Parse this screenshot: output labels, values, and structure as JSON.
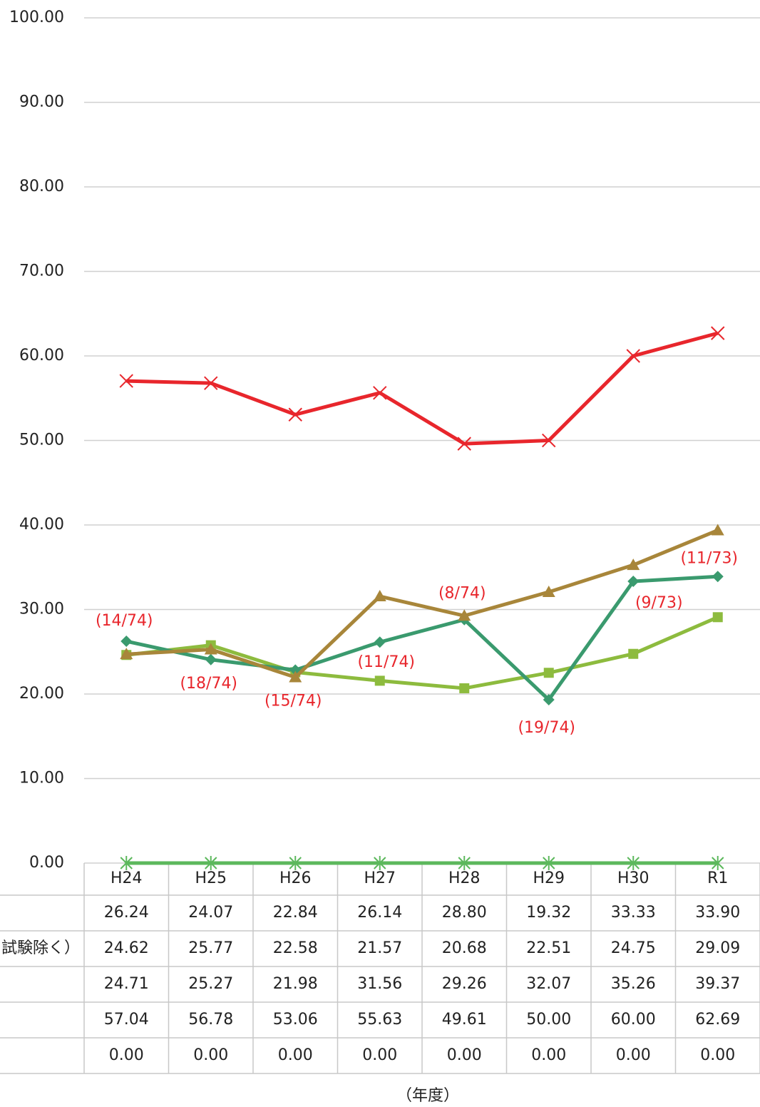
{
  "chart_data": {
    "type": "line",
    "x_label": "（年度）",
    "categories": [
      "H24",
      "H25",
      "H26",
      "H27",
      "H28",
      "H29",
      "H30",
      "R1"
    ],
    "series": [
      {
        "color": "#3a9a6e",
        "marker": "diamond",
        "values": [
          26.24,
          24.07,
          22.84,
          26.14,
          28.8,
          19.32,
          33.33,
          33.9
        ],
        "value_labels": [
          "26.24",
          "24.07",
          "22.84",
          "26.14",
          "28.80",
          "19.32",
          "33.33",
          "33.90"
        ]
      },
      {
        "name": "試験除く）",
        "color": "#8dbb3e",
        "marker": "square",
        "values": [
          24.62,
          25.77,
          22.58,
          21.57,
          20.68,
          22.51,
          24.75,
          29.09
        ],
        "value_labels": [
          "24.62",
          "25.77",
          "22.58",
          "21.57",
          "20.68",
          "22.51",
          "24.75",
          "29.09"
        ]
      },
      {
        "color": "#a8863a",
        "marker": "triangle",
        "values": [
          24.71,
          25.27,
          21.98,
          31.56,
          29.26,
          32.07,
          35.26,
          39.37
        ],
        "value_labels": [
          "24.71",
          "25.27",
          "21.98",
          "31.56",
          "29.26",
          "32.07",
          "35.26",
          "39.37"
        ]
      },
      {
        "color": "#e8262c",
        "marker": "x",
        "values": [
          57.04,
          56.78,
          53.06,
          55.63,
          49.61,
          50.0,
          60.0,
          62.69
        ],
        "value_labels": [
          "57.04",
          "56.78",
          "53.06",
          "55.63",
          "49.61",
          "50.00",
          "60.00",
          "62.69"
        ]
      },
      {
        "color": "#5cb85c",
        "marker": "star",
        "values": [
          0,
          0,
          0,
          0,
          0,
          0,
          0,
          0
        ],
        "value_labels": [
          "0.00",
          "0.00",
          "0.00",
          "0.00",
          "0.00",
          "0.00",
          "0.00",
          "0.00"
        ]
      }
    ],
    "annotations": [
      "(14/74)",
      "(18/74)",
      "(15/74)",
      "(11/74)",
      "(8/74)",
      "(19/74)",
      "(9/73)",
      "(11/73)"
    ],
    "ylim": [
      0,
      100
    ],
    "yticks": [
      {
        "value": 0,
        "label": "0.00"
      },
      {
        "value": 10,
        "label": "10.00"
      },
      {
        "value": 20,
        "label": "20.00"
      },
      {
        "value": 30,
        "label": "30.00"
      },
      {
        "value": 40,
        "label": "40.00"
      },
      {
        "value": 50,
        "label": "50.00"
      },
      {
        "value": 60,
        "label": "60.00"
      },
      {
        "value": 70,
        "label": "70.00"
      },
      {
        "value": 80,
        "label": "80.00"
      },
      {
        "value": 90,
        "label": "90.00"
      },
      {
        "value": 100,
        "label": "100.00"
      }
    ],
    "grid": true
  }
}
